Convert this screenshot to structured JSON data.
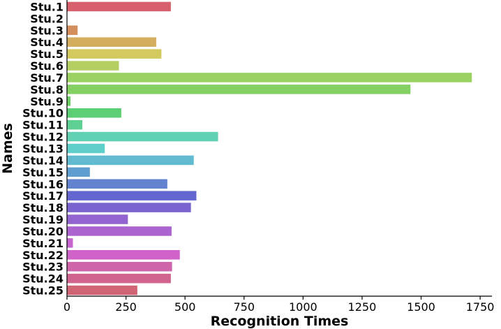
{
  "chart_data": {
    "type": "bar",
    "orientation": "horizontal",
    "title": "",
    "xlabel": "Recognition Times",
    "ylabel": "Names",
    "xlim": [
      0,
      1800
    ],
    "xticks": [
      0,
      250,
      500,
      750,
      1000,
      1250,
      1500,
      1750
    ],
    "grid": false,
    "categories": [
      "Stu.1",
      "Stu.2",
      "Stu.3",
      "Stu.4",
      "Stu.5",
      "Stu.6",
      "Stu.7",
      "Stu.8",
      "Stu.9",
      "Stu.10",
      "Stu.11",
      "Stu.12",
      "Stu.13",
      "Stu.14",
      "Stu.15",
      "Stu.16",
      "Stu.17",
      "Stu.18",
      "Stu.19",
      "Stu.20",
      "Stu.21",
      "Stu.22",
      "Stu.23",
      "Stu.24",
      "Stu.25"
    ],
    "values": [
      440,
      0,
      45,
      378,
      400,
      220,
      1715,
      1455,
      15,
      230,
      65,
      640,
      160,
      537,
      97,
      425,
      548,
      525,
      258,
      443,
      25,
      478,
      445,
      440,
      298
    ],
    "colors": [
      "#d6606b",
      "#d66a5c",
      "#d58f5e",
      "#d4ad5f",
      "#d3ca5f",
      "#b4d061",
      "#9bd160",
      "#84d062",
      "#6dcf63",
      "#5ccf74",
      "#5fd094",
      "#60d1b2",
      "#5fd0c9",
      "#60bad0",
      "#5f9ed0",
      "#6283cf",
      "#6466cf",
      "#7a63cf",
      "#9363cf",
      "#ab63d0",
      "#c563d0",
      "#d063ca",
      "#d064ab",
      "#d0648e",
      "#d06475"
    ]
  }
}
